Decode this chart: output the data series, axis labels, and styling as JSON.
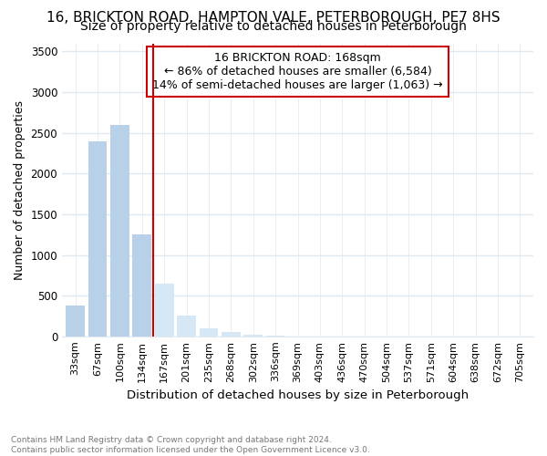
{
  "title": "16, BRICKTON ROAD, HAMPTON VALE, PETERBOROUGH, PE7 8HS",
  "subtitle": "Size of property relative to detached houses in Peterborough",
  "xlabel": "Distribution of detached houses by size in Peterborough",
  "ylabel": "Number of detached properties",
  "categories": [
    "33sqm",
    "67sqm",
    "100sqm",
    "134sqm",
    "167sqm",
    "201sqm",
    "235sqm",
    "268sqm",
    "302sqm",
    "336sqm",
    "369sqm",
    "403sqm",
    "436sqm",
    "470sqm",
    "504sqm",
    "537sqm",
    "571sqm",
    "604sqm",
    "638sqm",
    "672sqm",
    "705sqm"
  ],
  "values": [
    380,
    2400,
    2600,
    1250,
    650,
    260,
    100,
    50,
    20,
    5,
    3,
    2,
    0,
    0,
    0,
    0,
    0,
    0,
    0,
    0,
    0
  ],
  "bar_color_left": "#b8d0e8",
  "bar_color_right": "#d6e8f5",
  "vline_x_index": 4,
  "vline_color": "#cc0000",
  "annotation_title": "16 BRICKTON ROAD: 168sqm",
  "annotation_line1": "← 86% of detached houses are smaller (6,584)",
  "annotation_line2": "14% of semi-detached houses are larger (1,063) →",
  "annotation_box_color": "#cc0000",
  "ylim": [
    0,
    3600
  ],
  "yticks": [
    0,
    500,
    1000,
    1500,
    2000,
    2500,
    3000,
    3500
  ],
  "footer_line1": "Contains HM Land Registry data © Crown copyright and database right 2024.",
  "footer_line2": "Contains public sector information licensed under the Open Government Licence v3.0.",
  "bg_color": "#ffffff",
  "plot_bg_color": "#ffffff",
  "grid_color": "#e0e8f0",
  "title_fontsize": 11,
  "subtitle_fontsize": 10
}
